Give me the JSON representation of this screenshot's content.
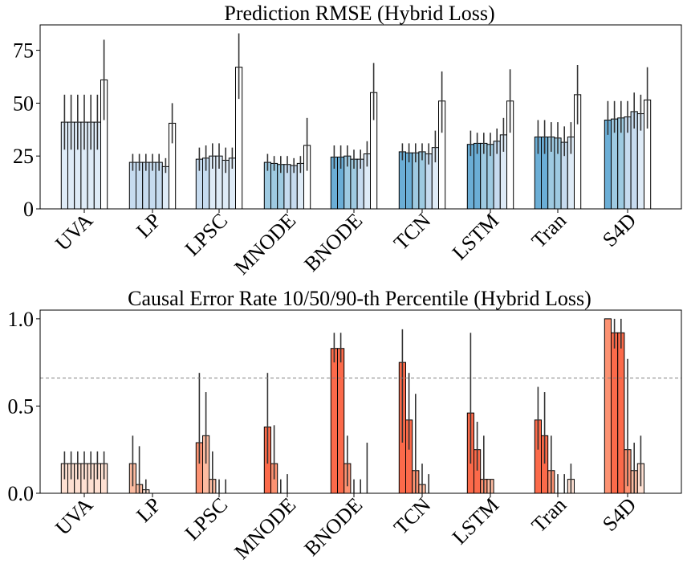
{
  "chart_data": [
    {
      "type": "bar",
      "title": "Prediction RMSE (Hybrid Loss)",
      "categories": [
        "UVA",
        "LP",
        "LPSC",
        "MNODE",
        "BNODE",
        "TCN",
        "LSTM",
        "Tran",
        "S4D"
      ],
      "yticks": [
        "0",
        "25",
        "50",
        "75"
      ],
      "ylim": [
        0,
        87
      ],
      "bars_per_group": 7,
      "values": [
        [
          41,
          41,
          41,
          41,
          41,
          41,
          61
        ],
        [
          22,
          22,
          22,
          22,
          22,
          20,
          40.5
        ],
        [
          23.5,
          24,
          25,
          25,
          23,
          24,
          67
        ],
        [
          22,
          21.5,
          21,
          21,
          20.5,
          21.5,
          30
        ],
        [
          24.5,
          24.5,
          25,
          23.5,
          23.5,
          26,
          55
        ],
        [
          27,
          26.5,
          26.5,
          27,
          26,
          29,
          51
        ],
        [
          30.5,
          31,
          31,
          30.5,
          32,
          35,
          51
        ],
        [
          34,
          34,
          34,
          33.5,
          31.5,
          34,
          54
        ],
        [
          42,
          42.5,
          43,
          43.5,
          46,
          45,
          51.5
        ]
      ],
      "error_low": [
        [
          28,
          28,
          28,
          28,
          28,
          28,
          42
        ],
        [
          18,
          18,
          18,
          18,
          18,
          17,
          31
        ],
        [
          18,
          18,
          19,
          19,
          17,
          19,
          52
        ],
        [
          18,
          18,
          17,
          17,
          17,
          17,
          18
        ],
        [
          19,
          19,
          20,
          19,
          19,
          20,
          42
        ],
        [
          23,
          22,
          22,
          23,
          21,
          22,
          36
        ],
        [
          25,
          26,
          26,
          25,
          26,
          27,
          36
        ],
        [
          26,
          26,
          27,
          26,
          25,
          26,
          40
        ],
        [
          35,
          36,
          36,
          36,
          38,
          37,
          38
        ]
      ],
      "error_high": [
        [
          54,
          54,
          54,
          54,
          54,
          54,
          80
        ],
        [
          26,
          26,
          26,
          26,
          26,
          24,
          50
        ],
        [
          29,
          30,
          31,
          31,
          29,
          29,
          83
        ],
        [
          26,
          25,
          25,
          25,
          24,
          25,
          43
        ],
        [
          30,
          30,
          30,
          28,
          28,
          32,
          69
        ],
        [
          31,
          31,
          31,
          31,
          31,
          37,
          65
        ],
        [
          37,
          36,
          36,
          36,
          38,
          43,
          66
        ],
        [
          42,
          42,
          41,
          41,
          39,
          41,
          68
        ],
        [
          51,
          51,
          51,
          51,
          55,
          54,
          67
        ]
      ],
      "colors": [
        [
          "#deebf7",
          "#deebf7",
          "#deebf7",
          "#deebf7",
          "#deebf7",
          "#deebf7",
          "#ffffff"
        ],
        [
          "#c6dbef",
          "#c6dbef",
          "#c6dbef",
          "#c6dbef",
          "#c6dbef",
          "#deebf7",
          "#ffffff"
        ],
        [
          "#c6dbef",
          "#c6dbef",
          "#deebf7",
          "#deebf7",
          "#deebf7",
          "#deebf7",
          "#ffffff"
        ],
        [
          "#9ecae1",
          "#9ecae1",
          "#9ecae1",
          "#c6dbef",
          "#c6dbef",
          "#deebf7",
          "#ffffff"
        ],
        [
          "#6baed6",
          "#6baed6",
          "#9ecae1",
          "#9ecae1",
          "#c6dbef",
          "#deebf7",
          "#ffffff"
        ],
        [
          "#6baed6",
          "#6baed6",
          "#9ecae1",
          "#9ecae1",
          "#c6dbef",
          "#deebf7",
          "#ffffff"
        ],
        [
          "#6baed6",
          "#6baed6",
          "#9ecae1",
          "#9ecae1",
          "#c6dbef",
          "#deebf7",
          "#ffffff"
        ],
        [
          "#6baed6",
          "#6baed6",
          "#9ecae1",
          "#9ecae1",
          "#c6dbef",
          "#deebf7",
          "#ffffff"
        ],
        [
          "#6baed6",
          "#9ecae1",
          "#9ecae1",
          "#c6dbef",
          "#c6dbef",
          "#deebf7",
          "#ffffff"
        ]
      ],
      "xlabel": "",
      "ylabel": "",
      "grid": false
    },
    {
      "type": "bar",
      "title": "Causal Error Rate 10/50/90-th Percentile (Hybrid Loss)",
      "categories": [
        "UVA",
        "LP",
        "LPSC",
        "MNODE",
        "BNODE",
        "TCN",
        "LSTM",
        "Tran",
        "S4D"
      ],
      "yticks": [
        "0.0",
        "0.5",
        "1.0"
      ],
      "ylim": [
        0,
        1.05
      ],
      "reference_line": 0.66,
      "bars_per_group": 7,
      "values": [
        [
          0.17,
          0.17,
          0.17,
          0.17,
          0.17,
          0.17,
          0.17
        ],
        [
          0.17,
          0.05,
          0.02,
          0,
          0,
          0,
          0
        ],
        [
          0.29,
          0.33,
          0.08,
          0,
          0,
          0,
          0
        ],
        [
          0.38,
          0.17,
          0,
          0,
          0,
          0,
          0
        ],
        [
          0.83,
          0.83,
          0.17,
          0,
          0,
          0,
          0
        ],
        [
          0.75,
          0.42,
          0.13,
          0.05,
          0,
          0,
          0
        ],
        [
          0.46,
          0.25,
          0.08,
          0.08,
          0,
          0,
          0
        ],
        [
          0.42,
          0.33,
          0.13,
          0,
          0,
          0.08,
          0
        ],
        [
          1.0,
          0.92,
          0.92,
          0.25,
          0.13,
          0.17,
          0
        ]
      ],
      "error_low": [
        [
          0.08,
          0.08,
          0.08,
          0.08,
          0.08,
          0.08,
          0.08
        ],
        [
          0.04,
          0,
          0,
          0,
          0,
          0,
          0
        ],
        [
          0.17,
          0.17,
          0,
          0,
          0,
          0,
          0
        ],
        [
          0.17,
          0.08,
          0,
          0,
          0,
          0,
          0
        ],
        [
          0.75,
          0.75,
          0.04,
          0,
          0,
          0,
          0
        ],
        [
          0.29,
          0.25,
          0,
          0,
          0,
          0,
          0
        ],
        [
          0.17,
          0.13,
          0,
          0,
          0,
          0,
          0
        ],
        [
          0.25,
          0.17,
          0,
          0,
          0,
          0,
          0
        ],
        [
          1.0,
          0.83,
          0.83,
          0.04,
          0,
          0.04,
          0
        ]
      ],
      "error_high": [
        [
          0.24,
          0.24,
          0.24,
          0.24,
          0.24,
          0.24,
          0.24
        ],
        [
          0.33,
          0.27,
          0.08,
          0,
          0,
          0,
          0
        ],
        [
          0.69,
          0.58,
          0.24,
          0.08,
          0.08,
          0,
          0
        ],
        [
          0.69,
          0.39,
          0.08,
          0.11,
          0,
          0,
          0
        ],
        [
          0.92,
          0.92,
          0.33,
          0.08,
          0.08,
          0.29,
          0
        ],
        [
          0.94,
          0.69,
          0.57,
          0.17,
          0.11,
          0,
          0
        ],
        [
          0.92,
          0.41,
          0.33,
          0.08,
          0,
          0,
          0
        ],
        [
          0.61,
          0.58,
          0.33,
          0.11,
          0.11,
          0.17,
          0
        ],
        [
          1.0,
          1.0,
          1.0,
          0.77,
          0.29,
          0.33,
          0
        ]
      ],
      "colors": [
        [
          "#fee0d2",
          "#fee0d2",
          "#fee0d2",
          "#fee0d2",
          "#fee0d2",
          "#fee0d2",
          "#fee0d2"
        ],
        [
          "#fcbba1",
          "#fcbba1",
          "#fee0d2",
          "#fee0d2",
          "#fee0d2",
          "#fee0d2",
          "#fee0d2"
        ],
        [
          "#fc9272",
          "#fcbba1",
          "#fcbba1",
          "#fee0d2",
          "#fee0d2",
          "#fee0d2",
          "#fee0d2"
        ],
        [
          "#fb6a4a",
          "#fc9272",
          "#fcbba1",
          "#fee0d2",
          "#fee0d2",
          "#fee0d2",
          "#fee0d2"
        ],
        [
          "#fb6a4a",
          "#fb6a4a",
          "#fc9272",
          "#fcbba1",
          "#fee0d2",
          "#fee0d2",
          "#fee0d2"
        ],
        [
          "#fb6a4a",
          "#fb6a4a",
          "#fc9272",
          "#fcbba1",
          "#fee0d2",
          "#fee0d2",
          "#fee0d2"
        ],
        [
          "#fb6a4a",
          "#fb6a4a",
          "#fc9272",
          "#fcbba1",
          "#fee0d2",
          "#fee0d2",
          "#fee0d2"
        ],
        [
          "#fb6a4a",
          "#fb6a4a",
          "#fc9272",
          "#fcbba1",
          "#fee0d2",
          "#fee0d2",
          "#fee0d2"
        ],
        [
          "#fc9272",
          "#fb6a4a",
          "#fb6a4a",
          "#fc9272",
          "#fcbba1",
          "#fee0d2",
          "#fee0d2"
        ]
      ],
      "xlabel": "",
      "ylabel": "",
      "grid": false
    }
  ]
}
